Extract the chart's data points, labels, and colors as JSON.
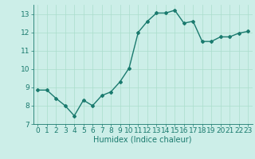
{
  "x": [
    0,
    1,
    2,
    3,
    4,
    5,
    6,
    7,
    8,
    9,
    10,
    11,
    12,
    13,
    14,
    15,
    16,
    17,
    18,
    19,
    20,
    21,
    22,
    23
  ],
  "y": [
    8.85,
    8.85,
    8.4,
    8.0,
    7.45,
    8.3,
    8.0,
    8.55,
    8.75,
    9.3,
    10.05,
    12.0,
    12.6,
    13.05,
    13.05,
    13.2,
    12.5,
    12.6,
    11.5,
    11.5,
    11.75,
    11.75,
    11.95,
    12.05
  ],
  "line_color": "#1a7a6e",
  "marker": "D",
  "marker_size": 2.0,
  "bg_color": "#cceee8",
  "grid_color": "#aaddcc",
  "xlabel": "Humidex (Indice chaleur)",
  "xlabel_fontsize": 7,
  "tick_fontsize": 6.5,
  "ylim": [
    7,
    13.5
  ],
  "xlim": [
    -0.5,
    23.5
  ],
  "yticks": [
    7,
    8,
    9,
    10,
    11,
    12,
    13
  ],
  "xticks": [
    0,
    1,
    2,
    3,
    4,
    5,
    6,
    7,
    8,
    9,
    10,
    11,
    12,
    13,
    14,
    15,
    16,
    17,
    18,
    19,
    20,
    21,
    22,
    23
  ],
  "linewidth": 1.0
}
